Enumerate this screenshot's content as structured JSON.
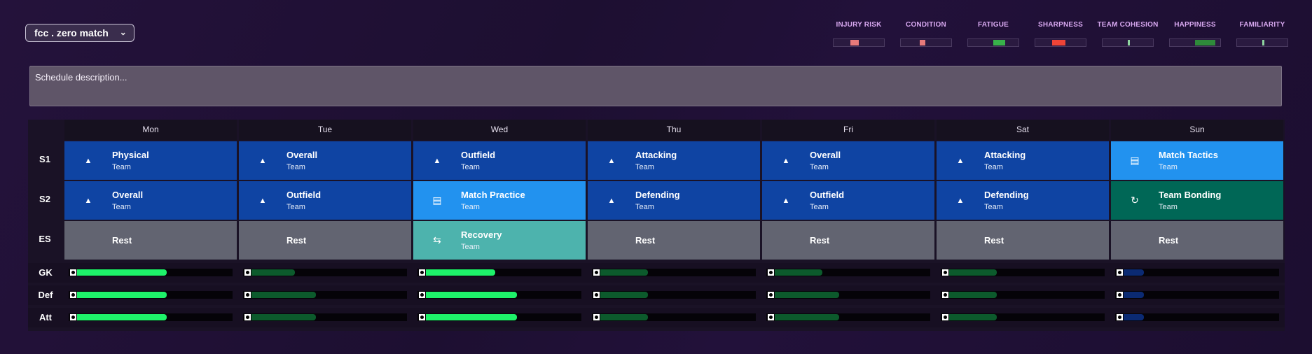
{
  "schedule": {
    "name": "fcc . zero match",
    "chevron_icon": "chevron-down-icon"
  },
  "meters": [
    {
      "label": "INJURY RISK",
      "color": "#e77a7a",
      "from": 0.33,
      "to": 0.5
    },
    {
      "label": "CONDITION",
      "color": "#e77a7a",
      "from": 0.37,
      "to": 0.48
    },
    {
      "label": "FATIGUE",
      "color": "#38b24a",
      "from": 0.5,
      "to": 0.73
    },
    {
      "label": "SHARPNESS",
      "color": "#ef4437",
      "from": 0.33,
      "to": 0.6
    },
    {
      "label": "TEAM COHESION",
      "color": "#8fd6a0",
      "from": 0.5,
      "to": 0.54
    },
    {
      "label": "HAPPINESS",
      "color": "#2e8a3a",
      "from": 0.5,
      "to": 0.9
    },
    {
      "label": "FAMILIARITY",
      "color": "#8fd6a0",
      "from": 0.5,
      "to": 0.54
    }
  ],
  "description": {
    "placeholder": "Schedule description..."
  },
  "days": [
    "Mon",
    "Tue",
    "Wed",
    "Thu",
    "Fri",
    "Sat",
    "Sun"
  ],
  "row_labels": [
    "S1",
    "S2",
    "ES"
  ],
  "sessions": [
    [
      {
        "title": "Physical",
        "sub": "Team",
        "kind": "team",
        "icon": "cone-icon"
      },
      {
        "title": "Overall",
        "sub": "Team",
        "kind": "team",
        "icon": "cone-icon"
      },
      {
        "title": "Outfield",
        "sub": "Team",
        "kind": "team",
        "icon": "cone-icon"
      },
      {
        "title": "Attacking",
        "sub": "Team",
        "kind": "team",
        "icon": "cone-icon"
      },
      {
        "title": "Overall",
        "sub": "Team",
        "kind": "team",
        "icon": "cone-icon"
      },
      {
        "title": "Attacking",
        "sub": "Team",
        "kind": "team",
        "icon": "cone-icon"
      },
      {
        "title": "Match Tactics",
        "sub": "Team",
        "kind": "match",
        "icon": "tactics-board-icon"
      }
    ],
    [
      {
        "title": "Overall",
        "sub": "Team",
        "kind": "team",
        "icon": "cone-icon"
      },
      {
        "title": "Outfield",
        "sub": "Team",
        "kind": "team",
        "icon": "cone-icon"
      },
      {
        "title": "Match Practice",
        "sub": "Team",
        "kind": "match",
        "icon": "tactics-board-icon"
      },
      {
        "title": "Defending",
        "sub": "Team",
        "kind": "team",
        "icon": "cone-icon"
      },
      {
        "title": "Outfield",
        "sub": "Team",
        "kind": "team",
        "icon": "cone-icon"
      },
      {
        "title": "Defending",
        "sub": "Team",
        "kind": "team",
        "icon": "cone-icon"
      },
      {
        "title": "Team Bonding",
        "sub": "Team",
        "kind": "bond",
        "icon": "team-bonding-icon"
      }
    ],
    [
      {
        "title": "Rest",
        "sub": "",
        "kind": "rest",
        "icon": ""
      },
      {
        "title": "Rest",
        "sub": "",
        "kind": "rest",
        "icon": ""
      },
      {
        "title": "Recovery",
        "sub": "Team",
        "kind": "rec",
        "icon": "recovery-icon"
      },
      {
        "title": "Rest",
        "sub": "",
        "kind": "rest",
        "icon": ""
      },
      {
        "title": "Rest",
        "sub": "",
        "kind": "rest",
        "icon": ""
      },
      {
        "title": "Rest",
        "sub": "",
        "kind": "rest",
        "icon": ""
      },
      {
        "title": "Rest",
        "sub": "",
        "kind": "rest",
        "icon": ""
      }
    ]
  ],
  "load_rows": [
    {
      "label": "GK",
      "levels": [
        0.58,
        0.28,
        0.45,
        0.31,
        0.31,
        0.31,
        0.13
      ]
    },
    {
      "label": "Def",
      "levels": [
        0.58,
        0.42,
        0.59,
        0.31,
        0.42,
        0.31,
        0.13
      ]
    },
    {
      "label": "Att",
      "levels": [
        0.58,
        0.42,
        0.59,
        0.31,
        0.42,
        0.31,
        0.13
      ]
    }
  ],
  "level_colors": {
    "high": "#1ef26a",
    "med": "#0c5a2c",
    "low": "#0b2a73"
  }
}
